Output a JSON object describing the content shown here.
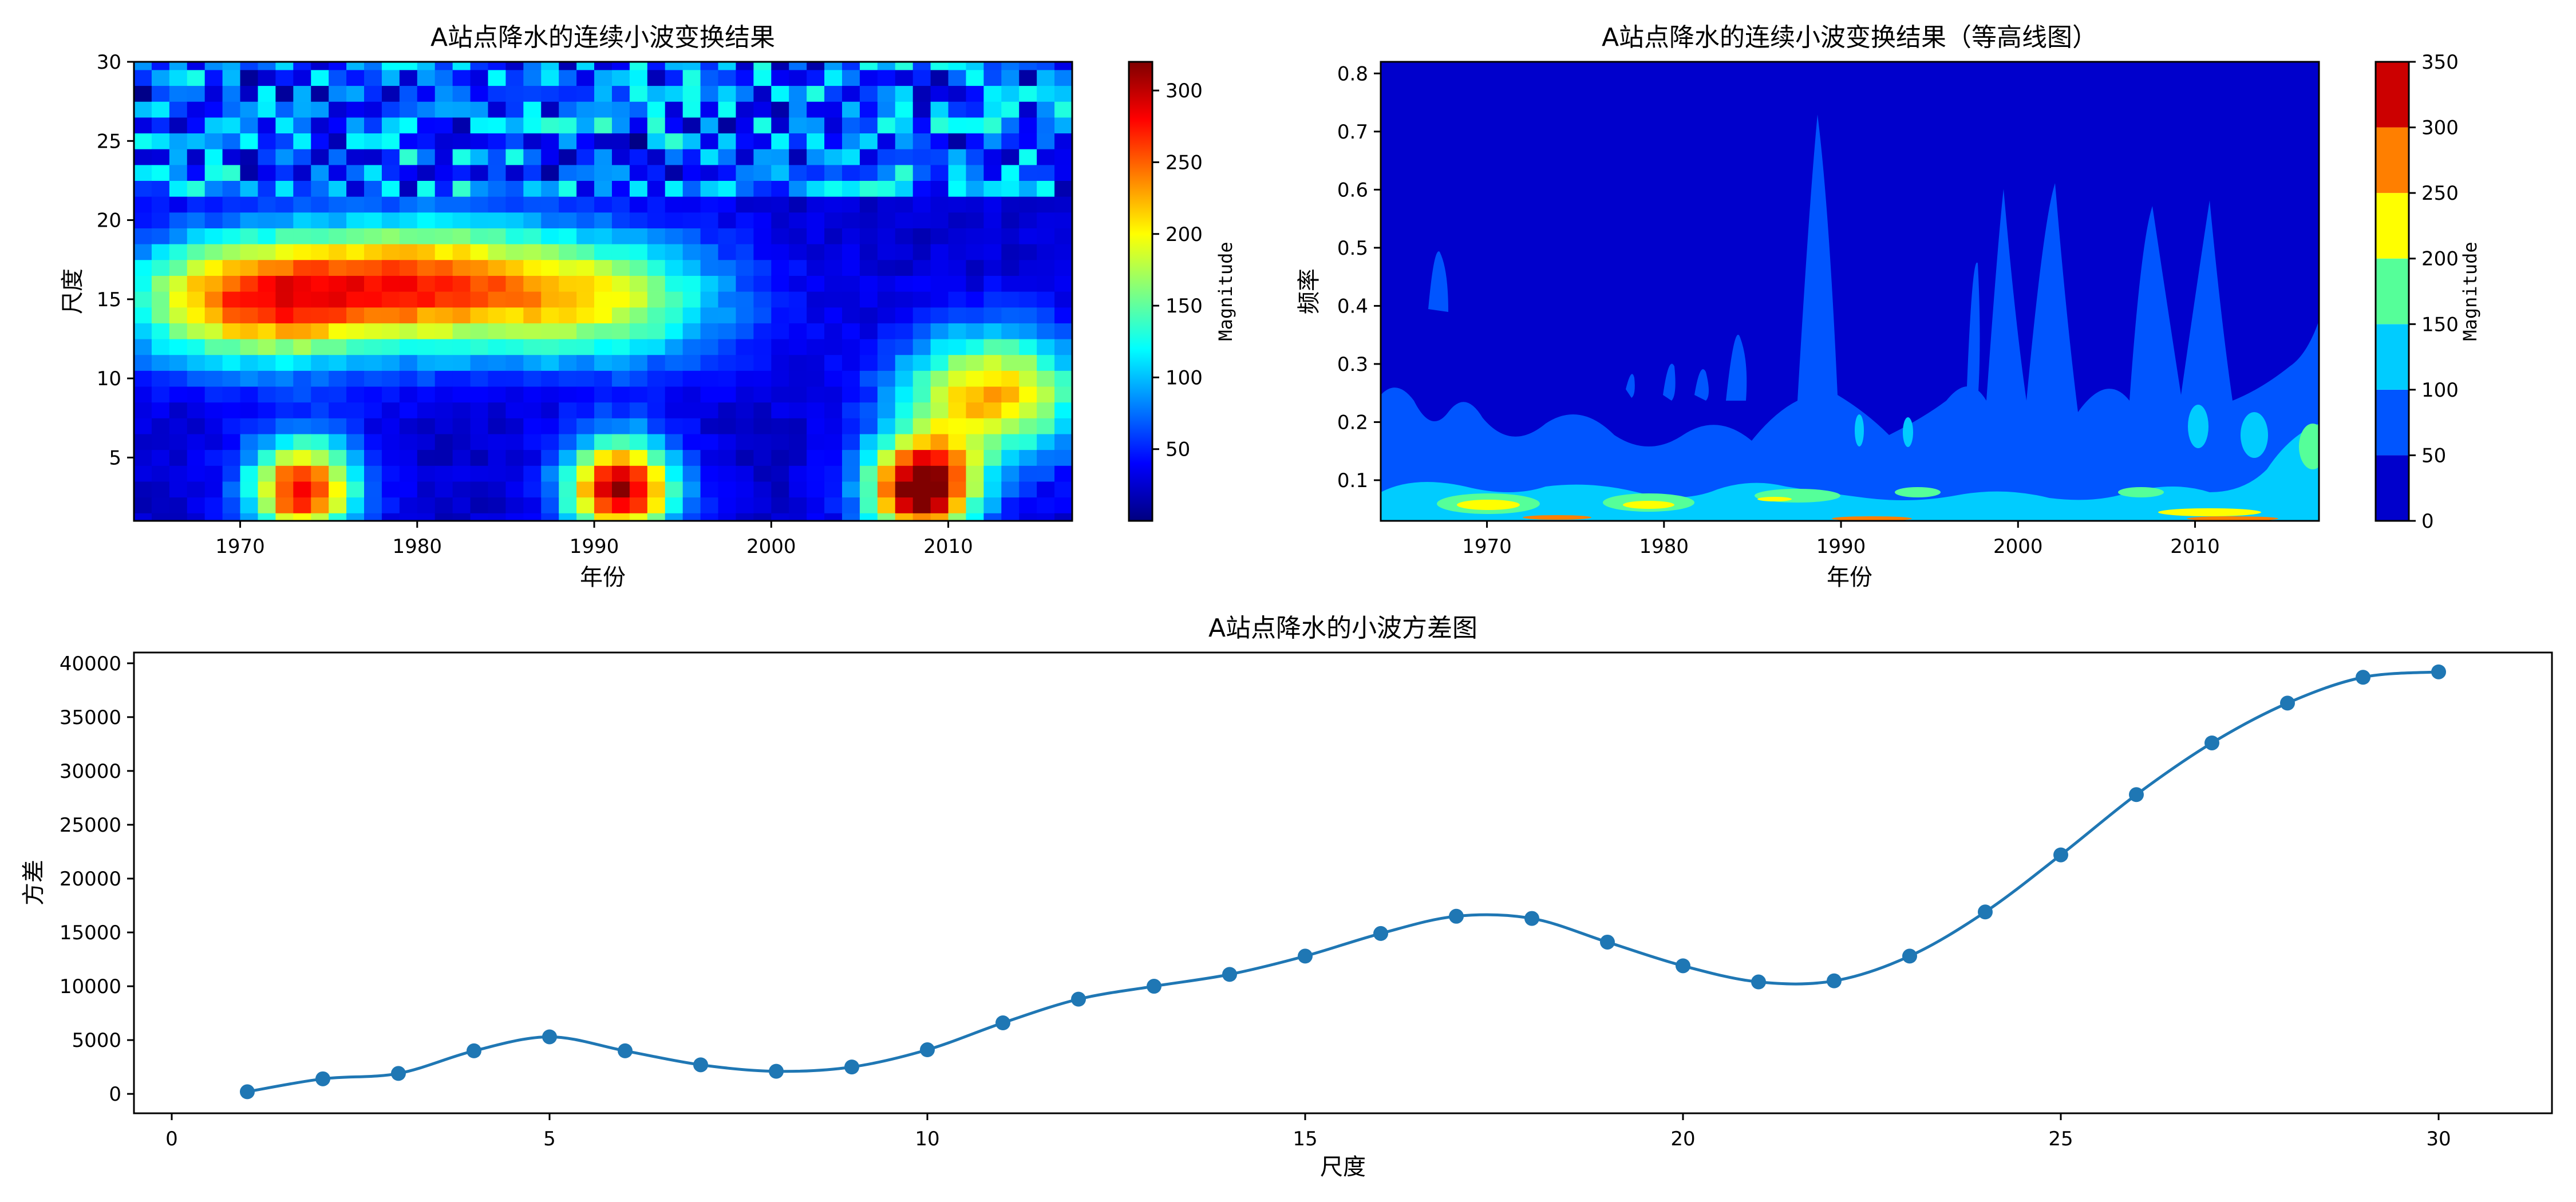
{
  "chart_data": [
    {
      "type": "heatmap",
      "title": "A站点降水的连续小波变换结果",
      "xlabel": "年份",
      "ylabel": "尺度",
      "xlim": [
        1964,
        2017
      ],
      "ylim": [
        1,
        30
      ],
      "x_ticks": [
        "1970",
        "1980",
        "1990",
        "2000",
        "2010"
      ],
      "y_ticks": [
        "5",
        "10",
        "15",
        "20",
        "25",
        "30"
      ],
      "colorbar_label": "Magnitude",
      "colorbar_ticks": [
        "50",
        "100",
        "150",
        "200",
        "250",
        "300"
      ],
      "colorbar_range": [
        0,
        320
      ],
      "colormap": "jet",
      "hotspots": [
        {
          "year": 1973,
          "scale": 3,
          "magnitude": 260
        },
        {
          "year": 1991,
          "scale": 3,
          "magnitude": 290
        },
        {
          "year": 2008,
          "scale": 3,
          "magnitude": 320
        },
        {
          "year": 1970,
          "scale": 15,
          "magnitude": 220
        },
        {
          "year": 1980,
          "scale": 16,
          "magnitude": 200
        },
        {
          "year": 1990,
          "scale": 15,
          "magnitude": 150
        },
        {
          "year": 2012,
          "scale": 9,
          "magnitude": 200
        }
      ]
    },
    {
      "type": "heatmap",
      "title": "A站点降水的连续小波变换结果（等高线图）",
      "xlabel": "年份",
      "ylabel": "频率",
      "xlim": [
        1964,
        2017
      ],
      "ylim": [
        0.03,
        0.82
      ],
      "x_ticks": [
        "1970",
        "1980",
        "1990",
        "2000",
        "2010"
      ],
      "y_ticks": [
        "0.1",
        "0.2",
        "0.3",
        "0.4",
        "0.5",
        "0.6",
        "0.7",
        "0.8"
      ],
      "colorbar_label": "Magnitude",
      "colorbar_ticks": [
        "0",
        "50",
        "100",
        "150",
        "200",
        "250",
        "300",
        "350"
      ],
      "colorbar_levels": [
        0,
        50,
        100,
        150,
        200,
        250,
        300,
        350
      ],
      "colormap": "jet (discrete)"
    },
    {
      "type": "line",
      "title": "A站点降水的小波方差图",
      "xlabel": "尺度",
      "ylabel": "方差",
      "xlim": [
        -0.5,
        31.5
      ],
      "ylim": [
        -1800,
        41000
      ],
      "x_ticks": [
        "0",
        "5",
        "10",
        "15",
        "20",
        "25",
        "30"
      ],
      "y_ticks": [
        "0",
        "5000",
        "10000",
        "15000",
        "20000",
        "25000",
        "30000",
        "35000",
        "40000"
      ],
      "x": [
        1,
        2,
        3,
        4,
        5,
        6,
        7,
        8,
        9,
        10,
        11,
        12,
        13,
        14,
        15,
        16,
        17,
        18,
        19,
        20,
        21,
        22,
        23,
        24,
        25,
        26,
        27,
        28,
        29,
        30
      ],
      "series": [
        {
          "values": [
            200,
            1400,
            1900,
            4000,
            5300,
            4000,
            2700,
            2100,
            2500,
            4100,
            6600,
            8800,
            10000,
            11100,
            12800,
            14900,
            16500,
            16300,
            14100,
            11900,
            10400,
            10500,
            12800,
            16900,
            22200,
            27800,
            32600,
            36300,
            38700,
            39200
          ],
          "color": "#1f77b4"
        }
      ],
      "grid": false
    }
  ]
}
